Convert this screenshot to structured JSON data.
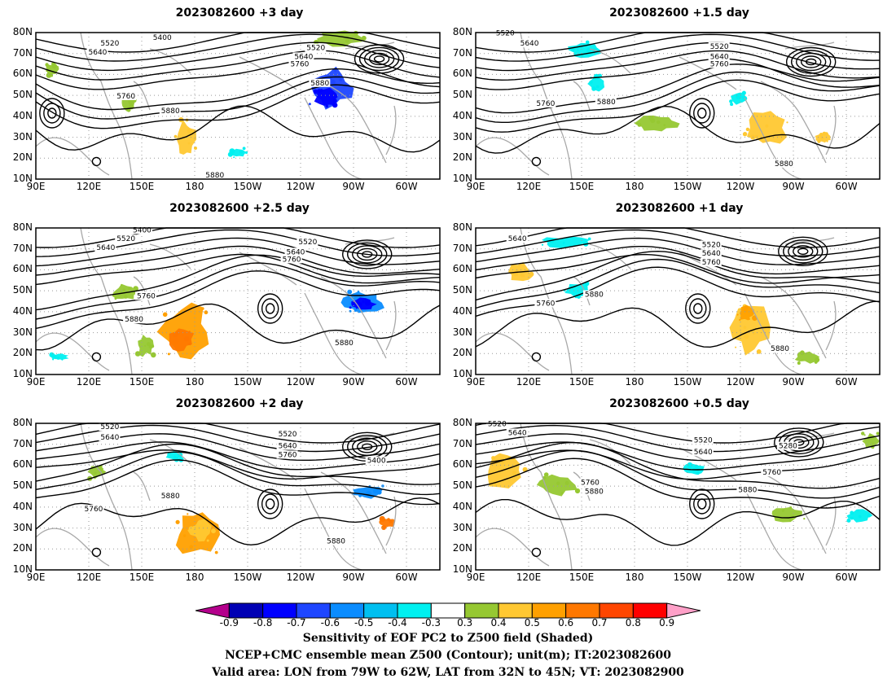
{
  "panels": [
    {
      "title": "2023082600 +3 day",
      "labels": [
        "5520",
        "5400",
        "5640",
        "5520",
        "5640",
        "5760",
        "5880",
        "5760",
        "5880",
        "5880"
      ]
    },
    {
      "title": "2023082600 +1.5 day",
      "labels": [
        "5520",
        "5640",
        "5520",
        "5640",
        "5760",
        "5760",
        "5880",
        "5880"
      ]
    },
    {
      "title": "2023082600 +2.5 day",
      "labels": [
        "5400",
        "5520",
        "5640",
        "5520",
        "5640",
        "5760",
        "5760",
        "5880",
        "5880"
      ]
    },
    {
      "title": "2023082600 +1 day",
      "labels": [
        "5640",
        "5520",
        "5640",
        "5760",
        "5760",
        "5880",
        "5880"
      ]
    },
    {
      "title": "2023082600 +2 day",
      "labels": [
        "5520",
        "5640",
        "5520",
        "5640",
        "5760",
        "5400",
        "5880",
        "5760",
        "5880"
      ]
    },
    {
      "title": "2023082600 +0.5 day",
      "labels": [
        "5520",
        "5640",
        "5520",
        "5640",
        "5280",
        "5760",
        "5760",
        "5880",
        "5880"
      ]
    }
  ],
  "axes": {
    "lat_ticks": [
      "80N",
      "70N",
      "60N",
      "50N",
      "40N",
      "30N",
      "20N",
      "10N"
    ],
    "lon_ticks": [
      "90E",
      "120E",
      "150E",
      "180",
      "150W",
      "120W",
      "90W",
      "60W"
    ]
  },
  "colorbar": {
    "labels": [
      "-0.9",
      "-0.8",
      "-0.7",
      "-0.6",
      "-0.5",
      "-0.4",
      "-0.3",
      "0.3",
      "0.4",
      "0.5",
      "0.6",
      "0.7",
      "0.8",
      "0.9"
    ],
    "colors": [
      "#b4008c",
      "#0000b4",
      "#0000ff",
      "#1e46ff",
      "#0a8cff",
      "#00bff0",
      "#00f0f0",
      "#ffffff",
      "#96c832",
      "#ffc832",
      "#ffa000",
      "#ff7800",
      "#ff4600",
      "#ff0000",
      "#ffa0c8"
    ]
  },
  "caption": {
    "line1": "Sensitivity of EOF PC2 to Z500 field (Shaded)",
    "line2": "NCEP+CMC ensemble mean Z500 (Contour); unit(m); IT:2023082600",
    "line3": "Valid area: LON from 79W to 62W, LAT from 32N to 45N; VT: 2023082900"
  }
}
